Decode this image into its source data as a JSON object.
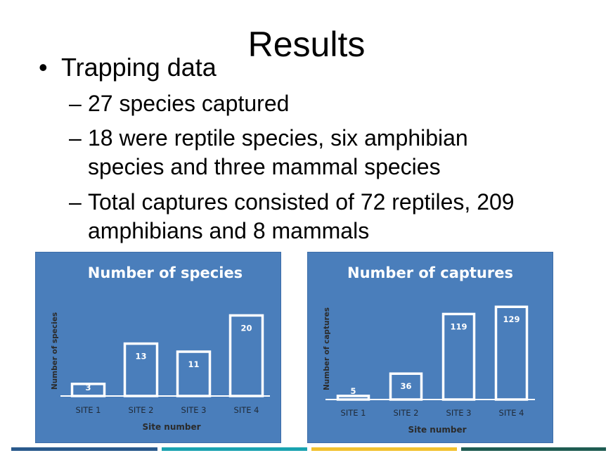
{
  "slide": {
    "title": "Results",
    "bullet": "Trapping data",
    "bullet_marker": "•",
    "dash": "–",
    "subbullets": [
      "27 species captured",
      "18 were reptile species, six amphibian species and three mammal species",
      "Total captures consisted of 72 reptiles, 209 amphibians and 8 mammals"
    ]
  },
  "colors": {
    "chart_background": "#4a7ebb",
    "bar_outline": "#ffffff",
    "footer": [
      "#2a5a8c",
      "#1aa3b0",
      "#f2c12e",
      "#1f5c52"
    ]
  },
  "chart_data": [
    {
      "type": "bar",
      "title": "Number of species",
      "xlabel": "Site number",
      "ylabel": "Number of species",
      "categories": [
        "SITE 1",
        "SITE 2",
        "SITE 3",
        "SITE 4"
      ],
      "values": [
        3,
        13,
        11,
        20
      ],
      "data_labels": true,
      "ylim": [
        0,
        22
      ],
      "grid": false,
      "legend": "none",
      "bar_style": "outline"
    },
    {
      "type": "bar",
      "title": "Number of captures",
      "xlabel": "Site number",
      "ylabel": "Number of captures",
      "categories": [
        "SITE 1",
        "SITE 2",
        "SITE 3",
        "SITE 4"
      ],
      "values": [
        5,
        36,
        119,
        129
      ],
      "data_labels": true,
      "ylim": [
        0,
        140
      ],
      "grid": false,
      "legend": "none",
      "bar_style": "outline"
    }
  ]
}
